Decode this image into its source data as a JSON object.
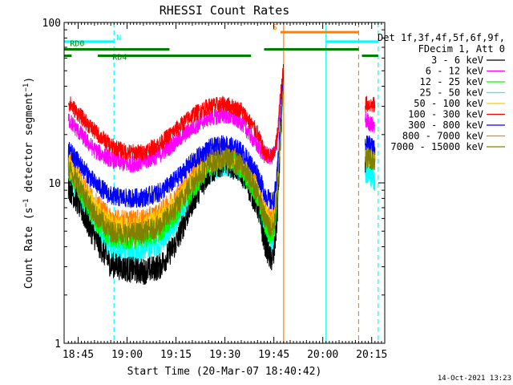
{
  "chart_data": {
    "type": "line",
    "title": "RHESSI Count Rates",
    "xlabel": "Start Time (20-Mar-07 18:40:42)",
    "ylabel": "Count Rate (s⁻¹ detector segment⁻¹)",
    "ylabel_parts": {
      "pre": "Count Rate (s",
      "sup1": "−1",
      "mid": " detector segment",
      "sup2": "−1",
      "post": ")"
    },
    "y_scale": "log",
    "ylim": [
      1,
      100
    ],
    "xlim": [
      "18:40:42",
      "20:19:00"
    ],
    "x_ticks": [
      "18:45",
      "19:00",
      "19:15",
      "19:30",
      "19:45",
      "20:00",
      "20:15"
    ],
    "y_ticks": [
      "1",
      "10",
      "100"
    ],
    "grid": false,
    "legend_position": "right",
    "legend_header": [
      "Det 1f,3f,4f,5f,6f,9f,",
      "FDecim 1, Att 0"
    ],
    "timestamp": "14-Oct-2021 13:23",
    "series": [
      {
        "name": "3 - 6 keV",
        "color": "#000000",
        "x": [
          "18:42",
          "18:45",
          "18:50",
          "18:55",
          "19:00",
          "19:05",
          "19:10",
          "19:15",
          "19:20",
          "19:25",
          "19:30",
          "19:35",
          "19:40",
          "19:42",
          "19:44",
          "19:45",
          "19:46",
          "19:47",
          "19:48",
          "20:13",
          "20:14",
          "20:15",
          "20:16"
        ],
        "y": [
          9.5,
          7.5,
          4.6,
          3.1,
          2.9,
          2.8,
          3.0,
          4.2,
          7.6,
          11.5,
          13.7,
          11.8,
          7.2,
          4.4,
          3.3,
          3.5,
          6.0,
          18.0,
          45.0,
          14.0,
          15.0,
          14.5,
          14.0
        ]
      },
      {
        "name": "6 - 12 keV",
        "color": "#ff00ff",
        "x": [
          "18:42",
          "18:45",
          "18:50",
          "18:55",
          "19:00",
          "19:05",
          "19:10",
          "19:15",
          "19:20",
          "19:25",
          "19:30",
          "19:35",
          "19:40",
          "19:42",
          "19:44",
          "19:45",
          "19:46",
          "19:47",
          "19:48",
          "20:13",
          "20:14",
          "20:15",
          "20:16"
        ],
        "y": [
          25,
          21,
          16,
          14,
          13,
          13.5,
          15,
          18,
          22,
          25.5,
          26.5,
          24,
          17,
          15,
          14.5,
          15,
          18,
          32,
          50,
          25,
          24,
          23,
          23
        ]
      },
      {
        "name": "12 - 25 keV",
        "color": "#00ff00",
        "x": [
          "18:42",
          "18:45",
          "18:50",
          "18:55",
          "19:00",
          "19:05",
          "19:10",
          "19:15",
          "19:20",
          "19:25",
          "19:30",
          "19:35",
          "19:40",
          "19:42",
          "19:44",
          "19:45",
          "19:46",
          "19:47",
          "19:48",
          "20:13",
          "20:14",
          "20:15",
          "20:16"
        ],
        "y": [
          12,
          9.5,
          6,
          4.6,
          4.5,
          4.6,
          5,
          6.5,
          9.2,
          12.4,
          14,
          12.6,
          8.4,
          5.8,
          4.8,
          5,
          8,
          20,
          45,
          14,
          14.5,
          14,
          13.5
        ]
      },
      {
        "name": "25 - 50 keV",
        "color": "#00ffff",
        "x": [
          "18:42",
          "18:45",
          "18:50",
          "18:55",
          "19:00",
          "19:05",
          "19:10",
          "19:15",
          "19:20",
          "19:25",
          "19:30",
          "19:35",
          "19:40",
          "19:42",
          "19:44",
          "19:45",
          "19:46",
          "19:47",
          "19:48",
          "20:13",
          "20:14",
          "20:15",
          "20:16"
        ],
        "y": [
          11,
          8.5,
          5.2,
          3.9,
          3.7,
          3.8,
          4.2,
          5.6,
          8.6,
          11.8,
          13.2,
          11.9,
          7.8,
          5.2,
          4.3,
          4.5,
          7.5,
          19,
          45,
          12,
          11.5,
          11,
          10.5
        ]
      },
      {
        "name": "50 - 100 keV",
        "color": "#ffcc00",
        "x": [
          "18:42",
          "18:45",
          "18:50",
          "18:55",
          "19:00",
          "19:05",
          "19:10",
          "19:15",
          "19:20",
          "19:25",
          "19:30",
          "19:35",
          "19:40",
          "19:42",
          "19:44",
          "19:45",
          "19:46",
          "19:47",
          "19:48",
          "20:13",
          "20:14",
          "20:15",
          "20:16"
        ],
        "y": [
          13,
          10.5,
          7,
          5.5,
          5.3,
          5.4,
          6,
          7.6,
          10.4,
          13.4,
          14.8,
          13.2,
          9.2,
          6.6,
          5.6,
          5.8,
          9,
          21,
          46,
          15,
          15,
          14.5,
          14
        ]
      },
      {
        "name": "100 - 300 keV",
        "color": "#ff0000",
        "x": [
          "18:42",
          "18:45",
          "18:50",
          "18:55",
          "19:00",
          "19:05",
          "19:10",
          "19:15",
          "19:20",
          "19:25",
          "19:30",
          "19:35",
          "19:40",
          "19:42",
          "19:44",
          "19:45",
          "19:46",
          "19:47",
          "19:48",
          "20:13",
          "20:14",
          "20:15",
          "20:16"
        ],
        "y": [
          32,
          27,
          21,
          17,
          15.5,
          15.5,
          17.5,
          21.5,
          26.5,
          30,
          31,
          28.5,
          20.5,
          15.5,
          14.5,
          15,
          19,
          34,
          55,
          31,
          31,
          30.5,
          30.5
        ]
      },
      {
        "name": "300 - 800 keV",
        "color": "#0000ff",
        "x": [
          "18:42",
          "18:45",
          "18:50",
          "18:55",
          "19:00",
          "19:05",
          "19:10",
          "19:15",
          "19:20",
          "19:25",
          "19:30",
          "19:35",
          "19:40",
          "19:42",
          "19:44",
          "19:45",
          "19:46",
          "19:47",
          "19:48",
          "20:13",
          "20:14",
          "20:15",
          "20:16"
        ],
        "y": [
          16,
          13.5,
          10,
          8.3,
          8,
          8.1,
          8.7,
          10.5,
          13.5,
          16.3,
          17.5,
          15.8,
          11.5,
          8.8,
          7.6,
          7.8,
          11,
          24,
          50,
          18,
          17.5,
          17,
          16.5
        ]
      },
      {
        "name": "800 - 7000 keV",
        "color": "#ff8000",
        "x": [
          "18:42",
          "18:45",
          "18:50",
          "18:55",
          "19:00",
          "19:05",
          "19:10",
          "19:15",
          "19:20",
          "19:25",
          "19:30",
          "19:35",
          "19:40",
          "19:42",
          "19:44",
          "19:45",
          "19:46",
          "19:47",
          "19:48",
          "20:13",
          "20:14",
          "20:15",
          "20:16"
        ],
        "y": [
          14,
          11.2,
          7.6,
          6,
          5.8,
          5.9,
          6.5,
          8.2,
          11.2,
          14.3,
          15.8,
          14,
          9.8,
          7,
          5.9,
          6.1,
          9.5,
          22,
          48,
          16,
          16,
          15.5,
          15
        ]
      },
      {
        "name": "7000 - 15000 keV",
        "color": "#808000",
        "x": [
          "18:42",
          "18:45",
          "18:50",
          "18:55",
          "19:00",
          "19:05",
          "19:10",
          "19:15",
          "19:20",
          "19:25",
          "19:30",
          "19:35",
          "19:40",
          "19:42",
          "19:44",
          "19:45",
          "19:46",
          "19:47",
          "19:48",
          "20:13",
          "20:14",
          "20:15",
          "20:16"
        ],
        "y": [
          12.5,
          10,
          6.4,
          5,
          4.8,
          4.9,
          5.4,
          7,
          10,
          13,
          14.4,
          12.9,
          8.8,
          6.2,
          5.2,
          5.4,
          8.5,
          20,
          46,
          14.5,
          14.5,
          14,
          13.8
        ]
      }
    ],
    "state_bars": [
      {
        "label": "N",
        "color": "#00ffff",
        "level": 76,
        "segments": [
          [
            "18:40:42",
            "18:56"
          ],
          [
            "20:01",
            "20:17"
          ]
        ]
      },
      {
        "label": "S",
        "color": "#ff8000",
        "level": 87,
        "segments": [
          [
            "19:47",
            "20:11"
          ]
        ]
      },
      {
        "label": "RD0",
        "color": "#008000",
        "level": 68,
        "segments": [
          [
            "18:40:42",
            "19:13"
          ],
          [
            "19:42",
            "20:11"
          ]
        ]
      },
      {
        "label": "RD4",
        "color": "#008000",
        "level": 62,
        "segments": [
          [
            "18:40:42",
            "18:43"
          ],
          [
            "18:51",
            "19:38"
          ],
          [
            "20:12",
            "20:17"
          ]
        ]
      }
    ],
    "vertical_markers": [
      {
        "time": "18:56",
        "color": "#00ffff",
        "style": "dashed"
      },
      {
        "time": "19:48",
        "color": "#ff8000",
        "style": "solid"
      },
      {
        "time": "20:01",
        "color": "#00ffff",
        "style": "solid"
      },
      {
        "time": "20:11",
        "color": "#ff8000",
        "style": "dashed"
      },
      {
        "time": "20:17",
        "color": "#00ffff",
        "style": "dashed"
      }
    ]
  }
}
